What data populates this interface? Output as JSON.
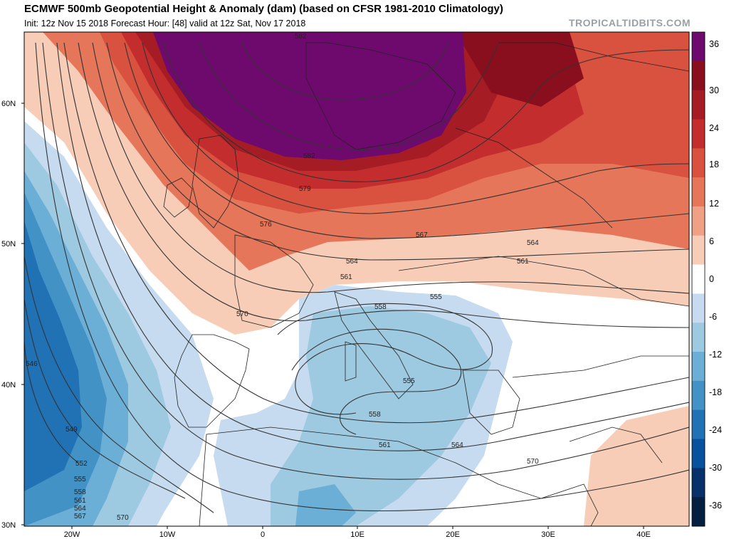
{
  "header": {
    "title": "ECMWF 500mb Geopotential Height & Anomaly (dam) (based on CFSR 1981-2010 Climatology)",
    "subtitle": "Init: 12z Nov 15 2018   Forecast Hour: [48]   valid at 12z Sat, Nov 17 2018",
    "watermark": "TROPICALTIDBITS.COM"
  },
  "axes": {
    "lat_labels": [
      "60N",
      "50N",
      "40N",
      "30N"
    ],
    "lon_labels": [
      "20W",
      "10W",
      "0",
      "10E",
      "20E",
      "30E",
      "40E"
    ]
  },
  "colorbar": {
    "labels": [
      "36",
      "30",
      "24",
      "18",
      "12",
      "6",
      "0",
      "-6",
      "-12",
      "-18",
      "-24",
      "-30",
      "-36"
    ],
    "colors": [
      "#6e0a6e",
      "#8a0f1e",
      "#a51c24",
      "#c32d2d",
      "#d9513f",
      "#e6765a",
      "#f0a084",
      "#f8cdb8",
      "#ffffff",
      "#c6dbef",
      "#9ecae1",
      "#6baed6",
      "#4292c6",
      "#2171b5",
      "#08519c",
      "#08306b",
      "#041f40"
    ]
  },
  "contours": {
    "labels": [
      "582",
      "582",
      "579",
      "576",
      "570",
      "567",
      "564",
      "561",
      "564",
      "561",
      "558",
      "555",
      "570",
      "555",
      "558",
      "561",
      "564",
      "570",
      "546",
      "549",
      "552",
      "555",
      "558",
      "561",
      "564",
      "567",
      "570"
    ]
  }
}
